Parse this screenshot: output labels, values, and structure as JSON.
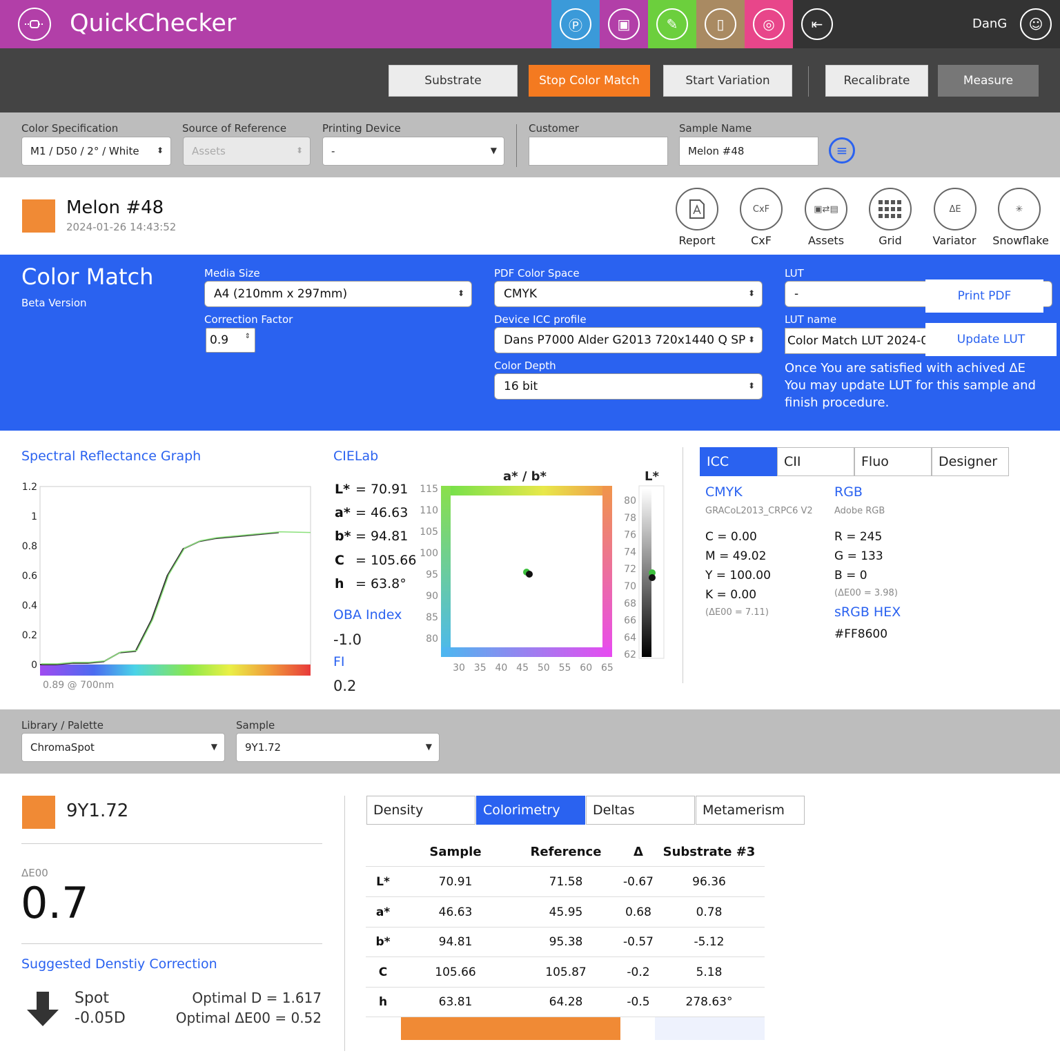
{
  "header": {
    "app_title": "QuickChecker",
    "user": "DanG",
    "colors": {
      "brand": "#b23fa8",
      "nav1": "#3b9ad9",
      "nav2": "#b23fa8",
      "nav3": "#6ccf3d",
      "nav4": "#a98a62",
      "nav5": "#e8468a",
      "dark": "#333333"
    }
  },
  "toolbar": {
    "substrate": "Substrate",
    "stop": "Stop Color Match",
    "start_variation": "Start Variation",
    "recalibrate": "Recalibrate",
    "measure": "Measure"
  },
  "filters": {
    "color_spec_label": "Color Specification",
    "color_spec_value": "M1 / D50 / 2° / White",
    "source_label": "Source of Reference",
    "source_value": "Assets",
    "device_label": "Printing Device",
    "device_value": "-",
    "customer_label": "Customer",
    "customer_value": "",
    "sample_name_label": "Sample Name",
    "sample_name_value": "Melon #48"
  },
  "sample": {
    "name": "Melon #48",
    "date": "2024-01-26 14:43:52",
    "swatch": "#f08a35"
  },
  "tools": [
    "Report",
    "CxF",
    "Assets",
    "Grid",
    "Variator",
    "Snowflake"
  ],
  "colormatch": {
    "title": "Color Match",
    "subtitle": "Beta Version",
    "media_label": "Media Size",
    "media_value": "A4 (210mm x 297mm)",
    "correction_label": "Correction Factor",
    "correction_value": "0.9",
    "pdf_cs_label": "PDF Color Space",
    "pdf_cs_value": "CMYK",
    "icc_label": "Device ICC profile",
    "icc_value": "Dans P7000 Alder G2013 720x1440 Q SP",
    "depth_label": "Color Depth",
    "depth_value": "16 bit",
    "lut_label": "LUT",
    "lut_value": "-",
    "print_pdf": "Print PDF",
    "lut_name_label": "LUT name",
    "lut_name_value": "Color Match LUT 2024-0",
    "update_lut": "Update LUT",
    "note": "Once You are satisfied with achived ΔE You may update LUT for this sample and finish procedure."
  },
  "spectral": {
    "title": "Spectral Reflectance Graph",
    "footer": "0.89 @ 700nm",
    "y_ticks": [
      "1.2",
      "1",
      "0.8",
      "0.6",
      "0.4",
      "0.2",
      "0"
    ]
  },
  "chart_data": {
    "type": "line",
    "title": "Spectral Reflectance Graph",
    "x": [
      400,
      420,
      440,
      460,
      480,
      500,
      520,
      540,
      560,
      580,
      600,
      620,
      640,
      660,
      680,
      700
    ],
    "series": [
      {
        "values": [
          0.0,
          0.0,
          0.01,
          0.01,
          0.02,
          0.08,
          0.09,
          0.3,
          0.6,
          0.78,
          0.83,
          0.85,
          0.86,
          0.87,
          0.88,
          0.89
        ]
      }
    ],
    "ylim": [
      0,
      1.2
    ],
    "xlabel": "",
    "ylabel": ""
  },
  "cielab": {
    "title": "CIELab",
    "L": "L*",
    "a": "a*",
    "b": "b*",
    "C": "C",
    "h": "h",
    "L_val": "= 70.91",
    "a_val": "= 46.63",
    "b_val": "= 94.81",
    "C_val": "= 105.66",
    "h_val": "= 63.8°",
    "oba_label": "OBA Index",
    "oba_value": "-1.0",
    "fi_label": "FI",
    "fi_value": "0.2",
    "ab_title": "a* / b*",
    "l_title": "L*",
    "ab_yticks": [
      "115",
      "110",
      "105",
      "100",
      "95",
      "90",
      "85",
      "80"
    ],
    "ab_xticks": [
      "30",
      "35",
      "40",
      "45",
      "50",
      "55",
      "60",
      "65"
    ],
    "l_ticks": [
      "80",
      "78",
      "76",
      "74",
      "72",
      "70",
      "68",
      "66",
      "64",
      "62"
    ]
  },
  "icc": {
    "tabs": [
      "ICC",
      "CII",
      "Fluo",
      "Designer"
    ],
    "cmyk_title": "CMYK",
    "cmyk_profile": "GRACoL2013_CRPC6 V2",
    "C": "C = 0.00",
    "M": "M = 49.02",
    "Y": "Y = 100.00",
    "K": "K = 0.00",
    "cmyk_de": "(ΔE00 = 7.11)",
    "rgb_title": "RGB",
    "rgb_profile": "Adobe RGB",
    "R": "R = 245",
    "G": "G = 133",
    "B": "B = 0",
    "rgb_de": "(ΔE00 = 3.98)",
    "hex_title": "sRGB HEX",
    "hex_value": "#FF8600"
  },
  "library": {
    "lib_label": "Library / Palette",
    "lib_value": "ChromaSpot",
    "sample_label": "Sample",
    "sample_value": "9Y1.72"
  },
  "reference": {
    "name": "9Y1.72",
    "swatch": "#f08a35",
    "de_label": "ΔE00",
    "de_value": "0.7",
    "suggest_title": "Suggested Denstiy Correction",
    "spot_label": "Spot",
    "spot_value": "-0.05D",
    "optimal_d": "Optimal D = 1.617",
    "optimal_de": "Optimal ΔE00 = 0.52"
  },
  "results": {
    "tabs": [
      "Density",
      "Colorimetry",
      "Deltas",
      "Metamerism"
    ],
    "headers": [
      "Sample",
      "Reference",
      "Δ",
      "Substrate #3"
    ],
    "rows": [
      [
        "L*",
        "70.91",
        "71.58",
        "-0.67",
        "96.36"
      ],
      [
        "a*",
        "46.63",
        "45.95",
        "0.68",
        "0.78"
      ],
      [
        "b*",
        "94.81",
        "95.38",
        "-0.57",
        "-5.12"
      ],
      [
        "C",
        "105.66",
        "105.87",
        "-0.2",
        "5.18"
      ],
      [
        "h",
        "63.81",
        "64.28",
        "-0.5",
        "278.63°"
      ]
    ]
  }
}
